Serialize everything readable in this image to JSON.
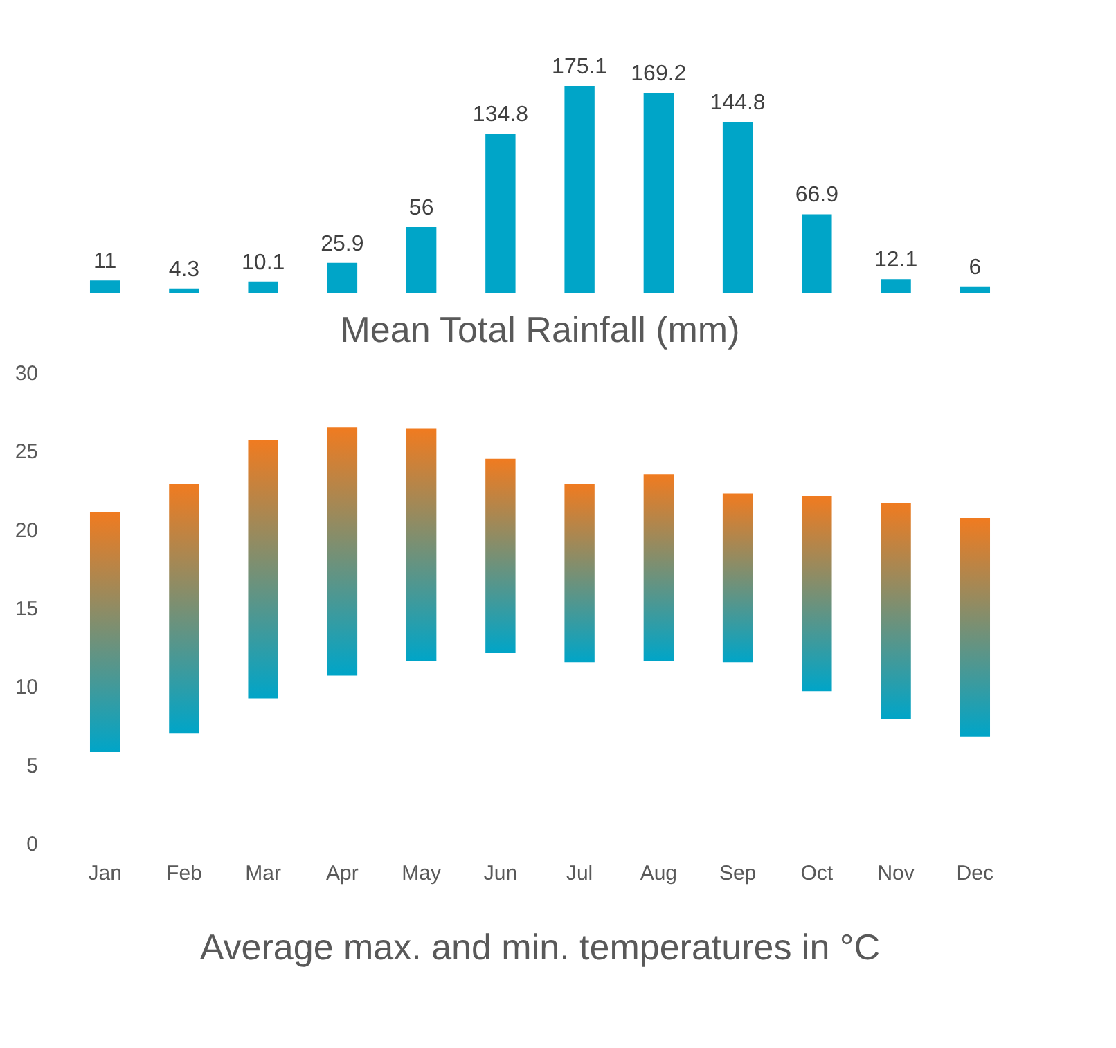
{
  "chart_data": [
    {
      "type": "bar",
      "title": "Mean Total Rainfall (mm)",
      "categories": [
        null,
        null,
        null,
        null,
        null,
        null,
        null,
        null,
        null,
        null,
        null,
        null
      ],
      "values": [
        11,
        4.3,
        10.1,
        25.9,
        56,
        134.8,
        175.1,
        169.2,
        144.8,
        66.9,
        12.1,
        6
      ],
      "color": "#00a5c8",
      "data_labels": true,
      "ylim": [
        0,
        175.1
      ],
      "tick_labels": false,
      "grid": false
    },
    {
      "type": "bar",
      "title": "Average max. and min. temperatures in °C",
      "categories": [
        "Jan",
        "Feb",
        "Mar",
        "Apr",
        "May",
        "Jun",
        "Jul",
        "Aug",
        "Sep",
        "Oct",
        "Nov",
        "Dec"
      ],
      "base": [
        5.8,
        7.0,
        9.2,
        10.7,
        11.6,
        12.1,
        11.5,
        11.6,
        11.5,
        9.7,
        7.9,
        6.8
      ],
      "values": [
        15.3,
        15.9,
        16.5,
        15.8,
        14.8,
        12.4,
        11.4,
        11.9,
        10.8,
        12.4,
        13.8,
        13.9
      ],
      "color": "#f07b20",
      "ylim": [
        0,
        30
      ],
      "yticks": [
        0,
        5,
        10,
        15,
        20,
        25,
        30
      ],
      "grid": false
    }
  ]
}
